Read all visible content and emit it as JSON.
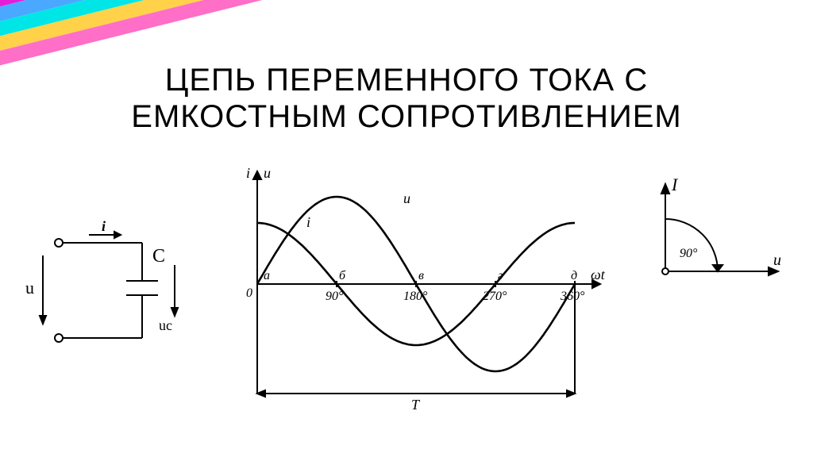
{
  "title": {
    "line1": "ЦЕПЬ ПЕРЕМЕННОГО ТОКА С",
    "line2": "ЕМКОСТНЫМ СОПРОТИВЛЕНИЕМ",
    "fontsize": 40,
    "color": "#000000"
  },
  "rainbow_stripes": {
    "colors": [
      "#e61cd8",
      "#4aa8ff",
      "#00e6e6",
      "#ffd24a",
      "#ff6ec7",
      "#ffffff"
    ],
    "stripe_width": 18
  },
  "circuit": {
    "i_label": "i",
    "u_label": "u",
    "c_label": "C",
    "uc_label": "uс",
    "stroke": "#000000",
    "stroke_width": 2
  },
  "waveplot": {
    "stroke": "#000000",
    "stroke_width_axes": 2,
    "stroke_width_curve": 2.5,
    "y_axis_labels": {
      "i": "i",
      "u": "u"
    },
    "x_axis_label": "ωt",
    "origin_label": "0",
    "period_label": "T",
    "xticks": [
      {
        "pos": 0,
        "letter": "а",
        "angle": ""
      },
      {
        "pos": 90,
        "letter": "б",
        "angle": "90°"
      },
      {
        "pos": 180,
        "letter": "в",
        "angle": "180°"
      },
      {
        "pos": 270,
        "letter": "г",
        "angle": "270°"
      },
      {
        "pos": 360,
        "letter": "д",
        "angle": "360°"
      }
    ],
    "curve_u_label": "u",
    "curve_i_label": "i",
    "amplitude_u": 1.0,
    "amplitude_i": 0.7,
    "phase_i_deg": -90,
    "phase_u_deg": 0
  },
  "phasor": {
    "I_label": "I",
    "u_label": "u",
    "angle_label": "90°",
    "stroke": "#000000",
    "stroke_width": 2
  },
  "background_color": "#ffffff"
}
